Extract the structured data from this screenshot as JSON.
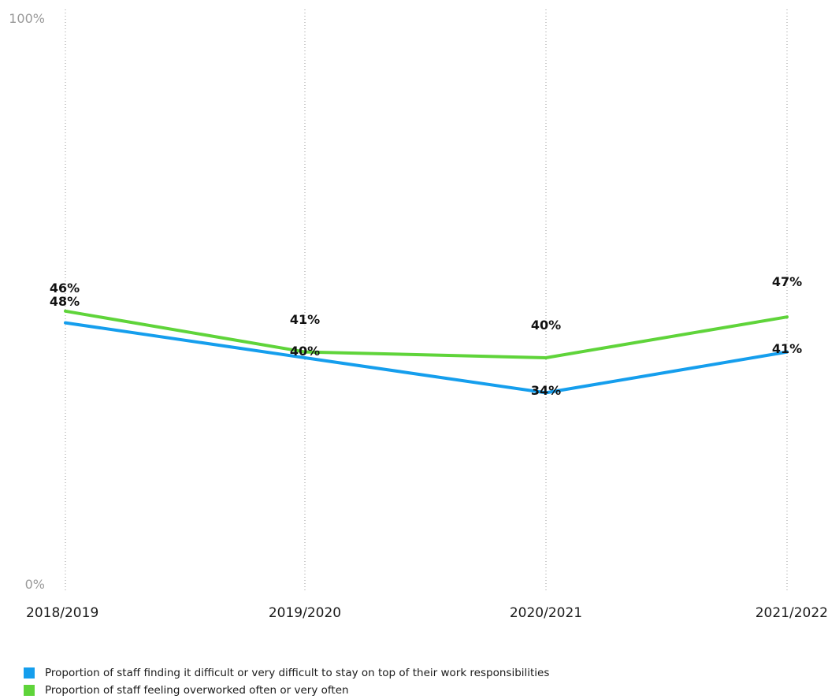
{
  "chart_data": {
    "type": "line",
    "categories": [
      "2018/2019",
      "2019/2020",
      "2020/2021",
      "2021/2022"
    ],
    "ylim": [
      0,
      100
    ],
    "ytick_labels": [
      "0%",
      "100%"
    ],
    "grid": "vertical dotted lines at each category",
    "legend_position": "bottom-left",
    "series": [
      {
        "name": "Proportion of staff finding it difficult or very difficult to stay on top of their work responsibilities",
        "color": "#159eed",
        "values": [
          46,
          40,
          34,
          41
        ],
        "labels": [
          "46%",
          "40%",
          "34%",
          "41%"
        ]
      },
      {
        "name": "Proportion of staff feeling overworked often or very often",
        "color": "#5fd43a",
        "values": [
          48,
          41,
          40,
          47
        ],
        "labels": [
          "48%",
          "41%",
          "40%",
          "47%"
        ]
      }
    ]
  }
}
